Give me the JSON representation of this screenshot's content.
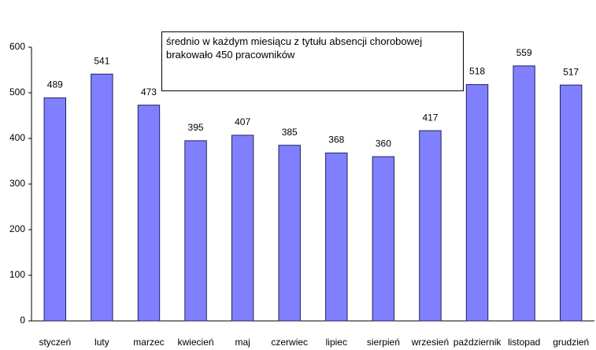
{
  "chart_data": {
    "type": "bar",
    "annotation": "średnio w każdym miesiącu z tytułu absencji chorobowej brakowało 450 pracowników",
    "categories": [
      "styczeń",
      "luty",
      "marzec",
      "kwiecień",
      "maj",
      "czerwiec",
      "lipiec",
      "sierpień",
      "wrzesień",
      "październik",
      "listopad",
      "grudzień"
    ],
    "values": [
      489,
      541,
      473,
      395,
      407,
      385,
      368,
      360,
      417,
      518,
      559,
      517
    ],
    "color": "#8080ff",
    "ylim": [
      0,
      600
    ],
    "yticks": [
      0,
      100,
      200,
      300,
      400,
      500,
      600
    ],
    "grid": false
  }
}
